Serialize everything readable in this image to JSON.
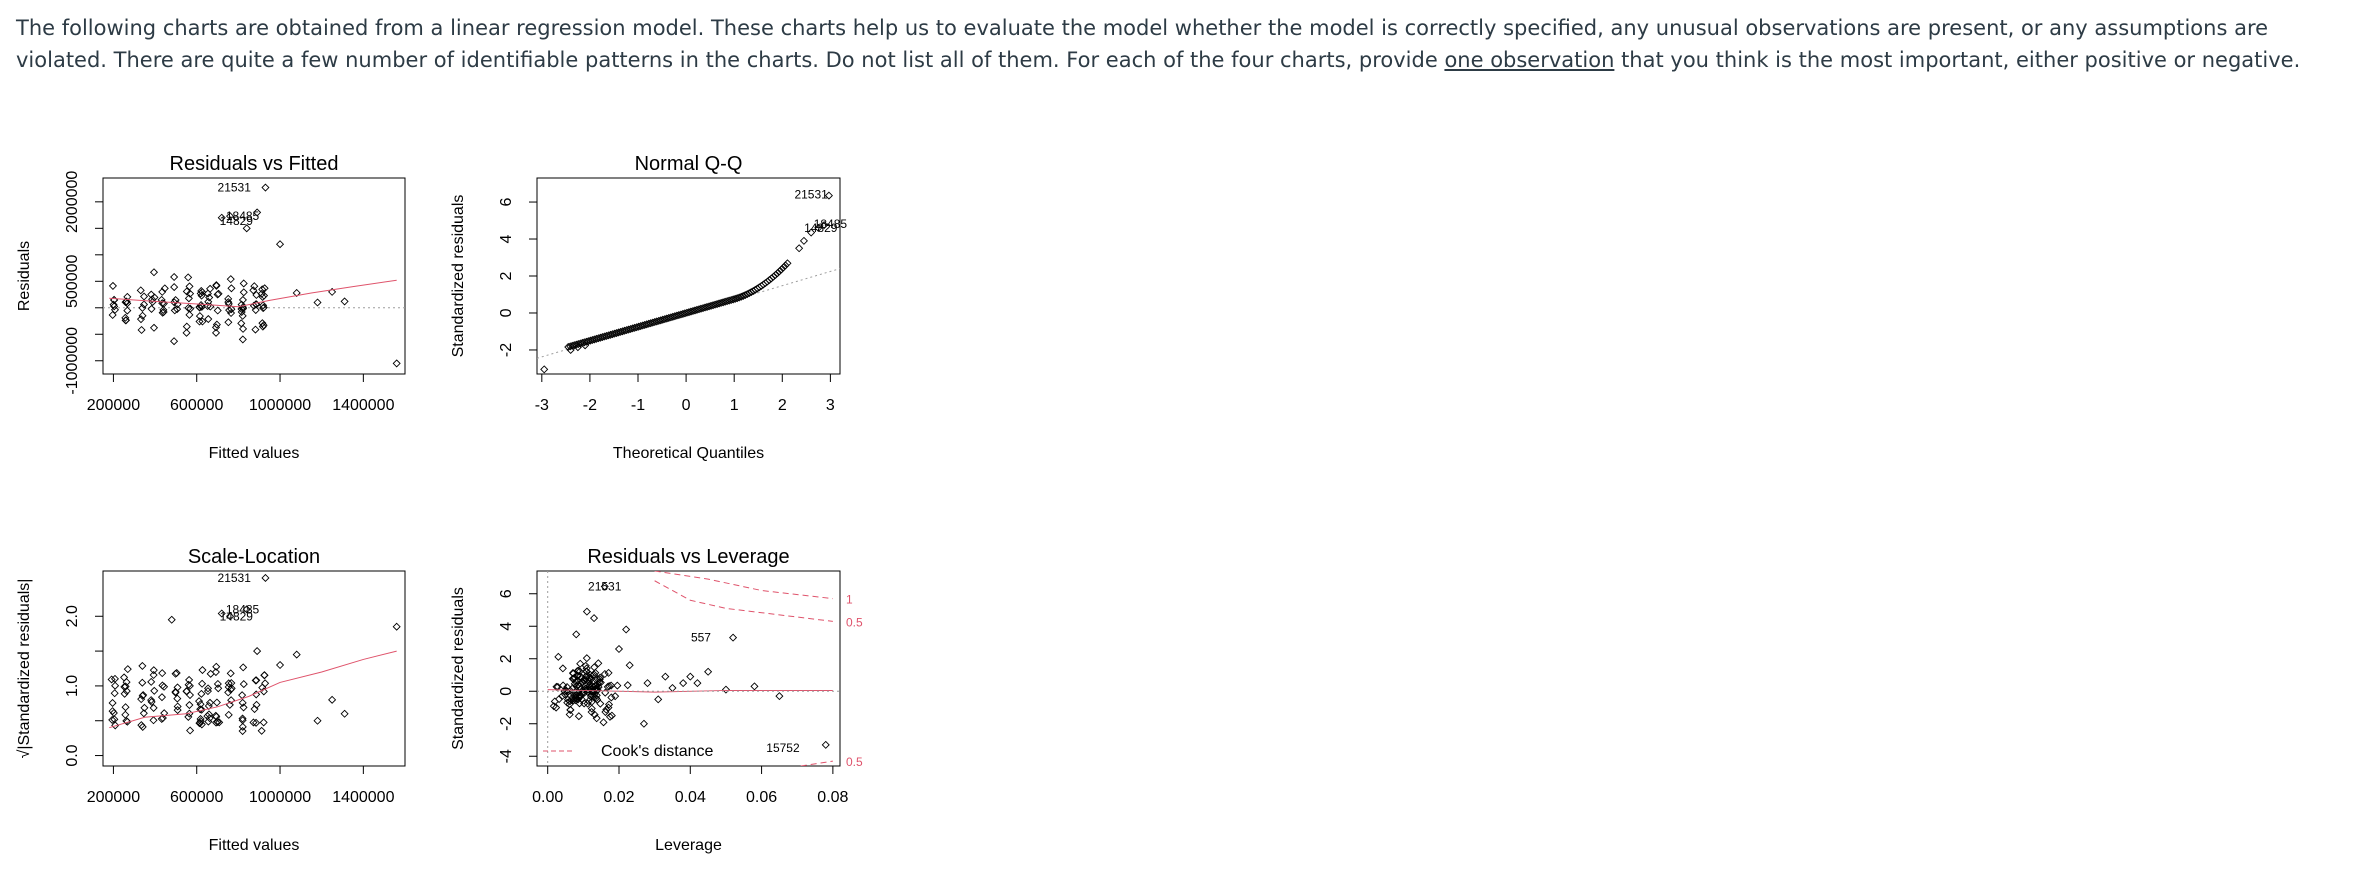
{
  "question": {
    "part1": "The following charts are obtained from a linear regression model. These charts help us to evaluate the model whether the model is correctly specified, any unusual observations are present, or any assumptions are violated. There are quite a few number of identifiable patterns in the charts. Do not list all of them. For each of the four charts, provide ",
    "underline": "one observation",
    "part2": " that you think is the most important, either positive or negative."
  },
  "colors": {
    "points": "#000000",
    "smooth": "#df536b",
    "reference": "#9e9e9e",
    "cook": "#df536b",
    "text": "#2d3b45"
  },
  "chart_data": [
    {
      "type": "scatter",
      "title": "Residuals vs Fitted",
      "xlabel": "Fitted values",
      "ylabel": "Residuals",
      "xlim": [
        150000,
        1600000
      ],
      "ylim": [
        -1250000,
        2450000
      ],
      "xticks": [
        "200000",
        "600000",
        "1000000",
        "1400000"
      ],
      "xtick_values": [
        200000,
        600000,
        1000000,
        1400000
      ],
      "yticks": [
        "-1000000",
        "500000",
        "2000000"
      ],
      "ytick_values": [
        -1000000,
        500000,
        2000000
      ],
      "ytick_minor": [
        -500000,
        0,
        1000000,
        1500000
      ],
      "labels": [
        {
          "text": "21531",
          "x": 780000,
          "y": 2270000
        },
        {
          "text": "14829",
          "x": 790000,
          "y": 1640000
        },
        {
          "text": "18485",
          "x": 820000,
          "y": 1730000
        }
      ],
      "outliers": [
        [
          1560000,
          -1050000
        ],
        [
          1310000,
          120000
        ],
        [
          1250000,
          300000
        ],
        [
          1180000,
          100000
        ],
        [
          1080000,
          280000
        ],
        [
          1000000,
          1200000
        ],
        [
          890000,
          1800000
        ],
        [
          840000,
          1500000
        ],
        [
          760000,
          1730000
        ]
      ],
      "smooth": [
        [
          180000,
          180000
        ],
        [
          400000,
          120000
        ],
        [
          650000,
          60000
        ],
        [
          800000,
          20000
        ],
        [
          950000,
          140000
        ],
        [
          1150000,
          280000
        ],
        [
          1350000,
          400000
        ],
        [
          1560000,
          520000
        ]
      ],
      "reference_y": 0
    },
    {
      "type": "scatter",
      "title": "Normal Q-Q",
      "xlabel": "Theoretical Quantiles",
      "ylabel": "Standardized residuals",
      "xlim": [
        -3.1,
        3.2
      ],
      "ylim": [
        -3.3,
        7.3
      ],
      "xticks": [
        "-3",
        "-2",
        "-1",
        "0",
        "1",
        "2",
        "3"
      ],
      "xtick_values": [
        -3,
        -2,
        -1,
        0,
        1,
        2,
        3
      ],
      "yticks": [
        "-2",
        "0",
        "2",
        "4",
        "6"
      ],
      "ytick_values": [
        -2,
        0,
        2,
        4,
        6
      ],
      "labels": [
        {
          "text": "21531",
          "x": 2.6,
          "y": 6.4
        },
        {
          "text": "14829",
          "x": 2.8,
          "y": 4.6
        },
        {
          "text": "18485",
          "x": 3.0,
          "y": 4.8
        }
      ],
      "reference_line": [
        [
          -3.1,
          -2.45
        ],
        [
          3.2,
          2.4
        ]
      ]
    },
    {
      "type": "scatter",
      "title": "Scale-Location",
      "xlabel": "Fitted values",
      "ylabel": "√|Standardized residuals|",
      "xlim": [
        150000,
        1600000
      ],
      "ylim": [
        -0.15,
        2.65
      ],
      "xticks": [
        "200000",
        "600000",
        "1000000",
        "1400000"
      ],
      "xtick_values": [
        200000,
        600000,
        1000000,
        1400000
      ],
      "yticks": [
        "0.0",
        "1.0",
        "2.0"
      ],
      "ytick_values": [
        0,
        1,
        2
      ],
      "ytick_minor": [
        0.5,
        1.5
      ],
      "labels": [
        {
          "text": "21531",
          "x": 780000,
          "y": 2.55
        },
        {
          "text": "14829",
          "x": 790000,
          "y": 2.0
        },
        {
          "text": "18485",
          "x": 820000,
          "y": 2.1
        }
      ],
      "outliers": [
        [
          1560000,
          1.85
        ],
        [
          1310000,
          0.6
        ],
        [
          1250000,
          0.8
        ],
        [
          1180000,
          0.5
        ],
        [
          1080000,
          1.45
        ],
        [
          1000000,
          1.3
        ],
        [
          890000,
          1.5
        ],
        [
          840000,
          2.1
        ],
        [
          760000,
          2.0
        ],
        [
          480000,
          1.95
        ]
      ],
      "smooth": [
        [
          180000,
          0.4
        ],
        [
          350000,
          0.55
        ],
        [
          550000,
          0.6
        ],
        [
          700000,
          0.7
        ],
        [
          850000,
          0.85
        ],
        [
          1000000,
          1.05
        ],
        [
          1200000,
          1.2
        ],
        [
          1400000,
          1.38
        ],
        [
          1560000,
          1.5
        ]
      ]
    },
    {
      "type": "scatter",
      "title": "Residuals vs Leverage",
      "xlabel": "Leverage",
      "ylabel": "Standardized residuals",
      "xlim": [
        -0.003,
        0.082
      ],
      "ylim": [
        -4.6,
        7.4
      ],
      "xticks": [
        "0.00",
        "0.02",
        "0.04",
        "0.06",
        "0.08"
      ],
      "xtick_values": [
        0,
        0.02,
        0.04,
        0.06,
        0.08
      ],
      "yticks": [
        "-4",
        "-2",
        "0",
        "2",
        "4",
        "6"
      ],
      "ytick_values": [
        -4,
        -2,
        0,
        2,
        4,
        6
      ],
      "labels": [
        {
          "text": "21531",
          "x": 0.016,
          "y": 6.45
        },
        {
          "text": "557",
          "x": 0.043,
          "y": 3.3
        },
        {
          "text": "15752",
          "x": 0.066,
          "y": -3.5
        }
      ],
      "labeled_points": [
        [
          0.016,
          6.45
        ],
        [
          0.052,
          3.3
        ],
        [
          0.078,
          -3.3
        ]
      ],
      "outliers": [
        [
          0.023,
          1.6
        ],
        [
          0.028,
          0.5
        ],
        [
          0.031,
          -0.5
        ],
        [
          0.033,
          0.9
        ],
        [
          0.035,
          0.2
        ],
        [
          0.038,
          0.5
        ],
        [
          0.04,
          0.9
        ],
        [
          0.042,
          0.5
        ],
        [
          0.045,
          1.2
        ],
        [
          0.05,
          0.1
        ],
        [
          0.058,
          0.3
        ],
        [
          0.065,
          -0.3
        ],
        [
          0.022,
          3.8
        ],
        [
          0.02,
          2.6
        ],
        [
          0.011,
          4.9
        ],
        [
          0.013,
          4.5
        ],
        [
          0.008,
          3.5
        ],
        [
          0.027,
          -2.0
        ],
        [
          0.018,
          -1.5
        ]
      ],
      "smooth": [
        [
          0.0,
          0.1
        ],
        [
          0.01,
          0.05
        ],
        [
          0.02,
          0.0
        ],
        [
          0.03,
          -0.05
        ],
        [
          0.05,
          0.05
        ],
        [
          0.08,
          0.05
        ]
      ],
      "cook_curves": [
        {
          "label": "1",
          "points": [
            [
              0.03,
              7.4
            ],
            [
              0.045,
              6.9
            ],
            [
              0.06,
              6.2
            ],
            [
              0.08,
              5.7
            ]
          ]
        },
        {
          "label": "0.5",
          "points": [
            [
              0.03,
              6.8
            ],
            [
              0.04,
              5.6
            ],
            [
              0.05,
              5.1
            ],
            [
              0.065,
              4.7
            ],
            [
              0.08,
              4.3
            ]
          ]
        }
      ],
      "cook_lower": {
        "label": "0.5",
        "points": [
          [
            0.071,
            -4.6
          ],
          [
            0.08,
            -4.3
          ]
        ]
      },
      "legend": {
        "text": "Cook's distance",
        "position": "bottom-left"
      }
    }
  ]
}
